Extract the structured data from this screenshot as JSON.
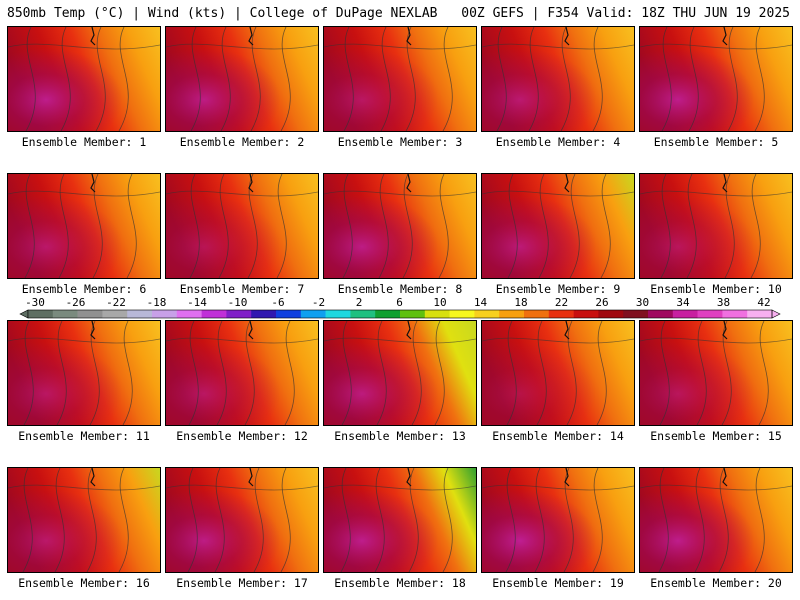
{
  "header": {
    "left": "850mb Temp (°C) | Wind (kts) | College of DuPage NEXLAB",
    "right": "00Z GEFS | F354 Valid: 18Z THU JUN 19 2025"
  },
  "colorbar": {
    "ticks": [
      "-30",
      "-26",
      "-22",
      "-18",
      "-14",
      "-10",
      "-6",
      "-2",
      "2",
      "6",
      "10",
      "14",
      "18",
      "22",
      "26",
      "30",
      "34",
      "38",
      "42"
    ],
    "colors": [
      "#5e6e62",
      "#7a8a7e",
      "#909090",
      "#a8a8a8",
      "#b8b8d8",
      "#c8a0e8",
      "#e070f0",
      "#c030d8",
      "#8020c8",
      "#3018b0",
      "#1040e0",
      "#10a0f0",
      "#20d8e0",
      "#20c080",
      "#10a030",
      "#60c010",
      "#d8e010",
      "#f8f820",
      "#f8d020",
      "#f8a010",
      "#f07010",
      "#e83010",
      "#c81010",
      "#a00810",
      "#801020",
      "#a00860",
      "#c820a0",
      "#e040c0",
      "#f070e0",
      "#f8b0f0"
    ]
  },
  "panels": [
    {
      "label": "Ensemble Member: 1",
      "hot": 0.85,
      "cool": 0.15
    },
    {
      "label": "Ensemble Member: 2",
      "hot": 0.8,
      "cool": 0.2
    },
    {
      "label": "Ensemble Member: 3",
      "hot": 0.55,
      "cool": 0.3
    },
    {
      "label": "Ensemble Member: 4",
      "hot": 0.65,
      "cool": 0.3
    },
    {
      "label": "Ensemble Member: 5",
      "hot": 0.85,
      "cool": 0.45
    },
    {
      "label": "Ensemble Member: 6",
      "hot": 0.6,
      "cool": 0.3
    },
    {
      "label": "Ensemble Member: 7",
      "hot": 0.45,
      "cool": 0.25
    },
    {
      "label": "Ensemble Member: 8",
      "hot": 0.8,
      "cool": 0.35
    },
    {
      "label": "Ensemble Member: 9",
      "hot": 0.7,
      "cool": 0.5
    },
    {
      "label": "Ensemble Member: 10",
      "hot": 0.5,
      "cool": 0.4
    },
    {
      "label": "Ensemble Member: 11",
      "hot": 0.55,
      "cool": 0.3
    },
    {
      "label": "Ensemble Member: 12",
      "hot": 0.55,
      "cool": 0.3
    },
    {
      "label": "Ensemble Member: 13",
      "hot": 0.75,
      "cool": 0.7
    },
    {
      "label": "Ensemble Member: 14",
      "hot": 0.35,
      "cool": 0.35
    },
    {
      "label": "Ensemble Member: 15",
      "hot": 0.5,
      "cool": 0.3
    },
    {
      "label": "Ensemble Member: 16",
      "hot": 0.6,
      "cool": 0.6
    },
    {
      "label": "Ensemble Member: 17",
      "hot": 0.8,
      "cool": 0.35
    },
    {
      "label": "Ensemble Member: 18",
      "hot": 0.85,
      "cool": 0.85
    },
    {
      "label": "Ensemble Member: 19",
      "hot": 0.9,
      "cool": 0.3
    },
    {
      "label": "Ensemble Member: 20",
      "hot": 0.85,
      "cool": 0.3
    }
  ]
}
